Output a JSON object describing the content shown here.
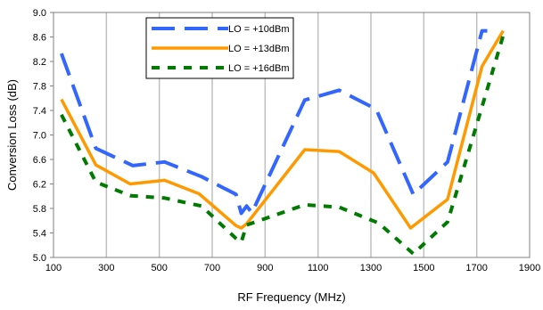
{
  "chart_data": {
    "type": "line",
    "xlabel": "RF Frequency (MHz)",
    "ylabel": "Conversion Loss (dB)",
    "xlim": [
      100,
      1900
    ],
    "ylim": [
      5.0,
      9.0
    ],
    "x_ticks": [
      100,
      300,
      500,
      700,
      900,
      1100,
      1300,
      1500,
      1700,
      1900
    ],
    "y_ticks": [
      "5.0",
      "5.4",
      "5.8",
      "6.2",
      "6.6",
      "7.0",
      "7.4",
      "7.8",
      "8.2",
      "8.6",
      "9.0"
    ],
    "grid": {
      "vertical": true,
      "horizontal": false
    },
    "legend_position": "top-center",
    "series": [
      {
        "name": "LO = +10dBm",
        "color": "#3366ff",
        "style": "long-dash",
        "x": [
          130,
          260,
          400,
          520,
          660,
          790,
          810,
          830,
          850,
          1050,
          1180,
          1320,
          1460,
          1590,
          1720,
          1740
        ],
        "y": [
          8.33,
          6.78,
          6.5,
          6.56,
          6.32,
          6.03,
          5.72,
          5.84,
          5.73,
          7.57,
          7.73,
          7.42,
          6.03,
          6.56,
          8.7,
          8.7
        ]
      },
      {
        "name": "LO = +13dBm",
        "color": "#ff9900",
        "style": "solid",
        "x": [
          130,
          260,
          390,
          520,
          650,
          790,
          810,
          830,
          1050,
          1180,
          1310,
          1450,
          1590,
          1720,
          1800
        ],
        "y": [
          7.58,
          6.51,
          6.2,
          6.26,
          6.04,
          5.52,
          5.48,
          5.55,
          6.76,
          6.73,
          6.38,
          5.48,
          5.95,
          8.12,
          8.7
        ]
      },
      {
        "name": "LO = +16dBm",
        "color": "#007a00",
        "style": "dotted",
        "x": [
          130,
          260,
          390,
          520,
          660,
          790,
          810,
          830,
          1050,
          1180,
          1330,
          1460,
          1590,
          1720,
          1800
        ],
        "y": [
          7.33,
          6.23,
          6.01,
          5.97,
          5.84,
          5.31,
          5.25,
          5.53,
          5.86,
          5.82,
          5.56,
          5.06,
          5.58,
          7.46,
          8.62
        ]
      }
    ]
  }
}
